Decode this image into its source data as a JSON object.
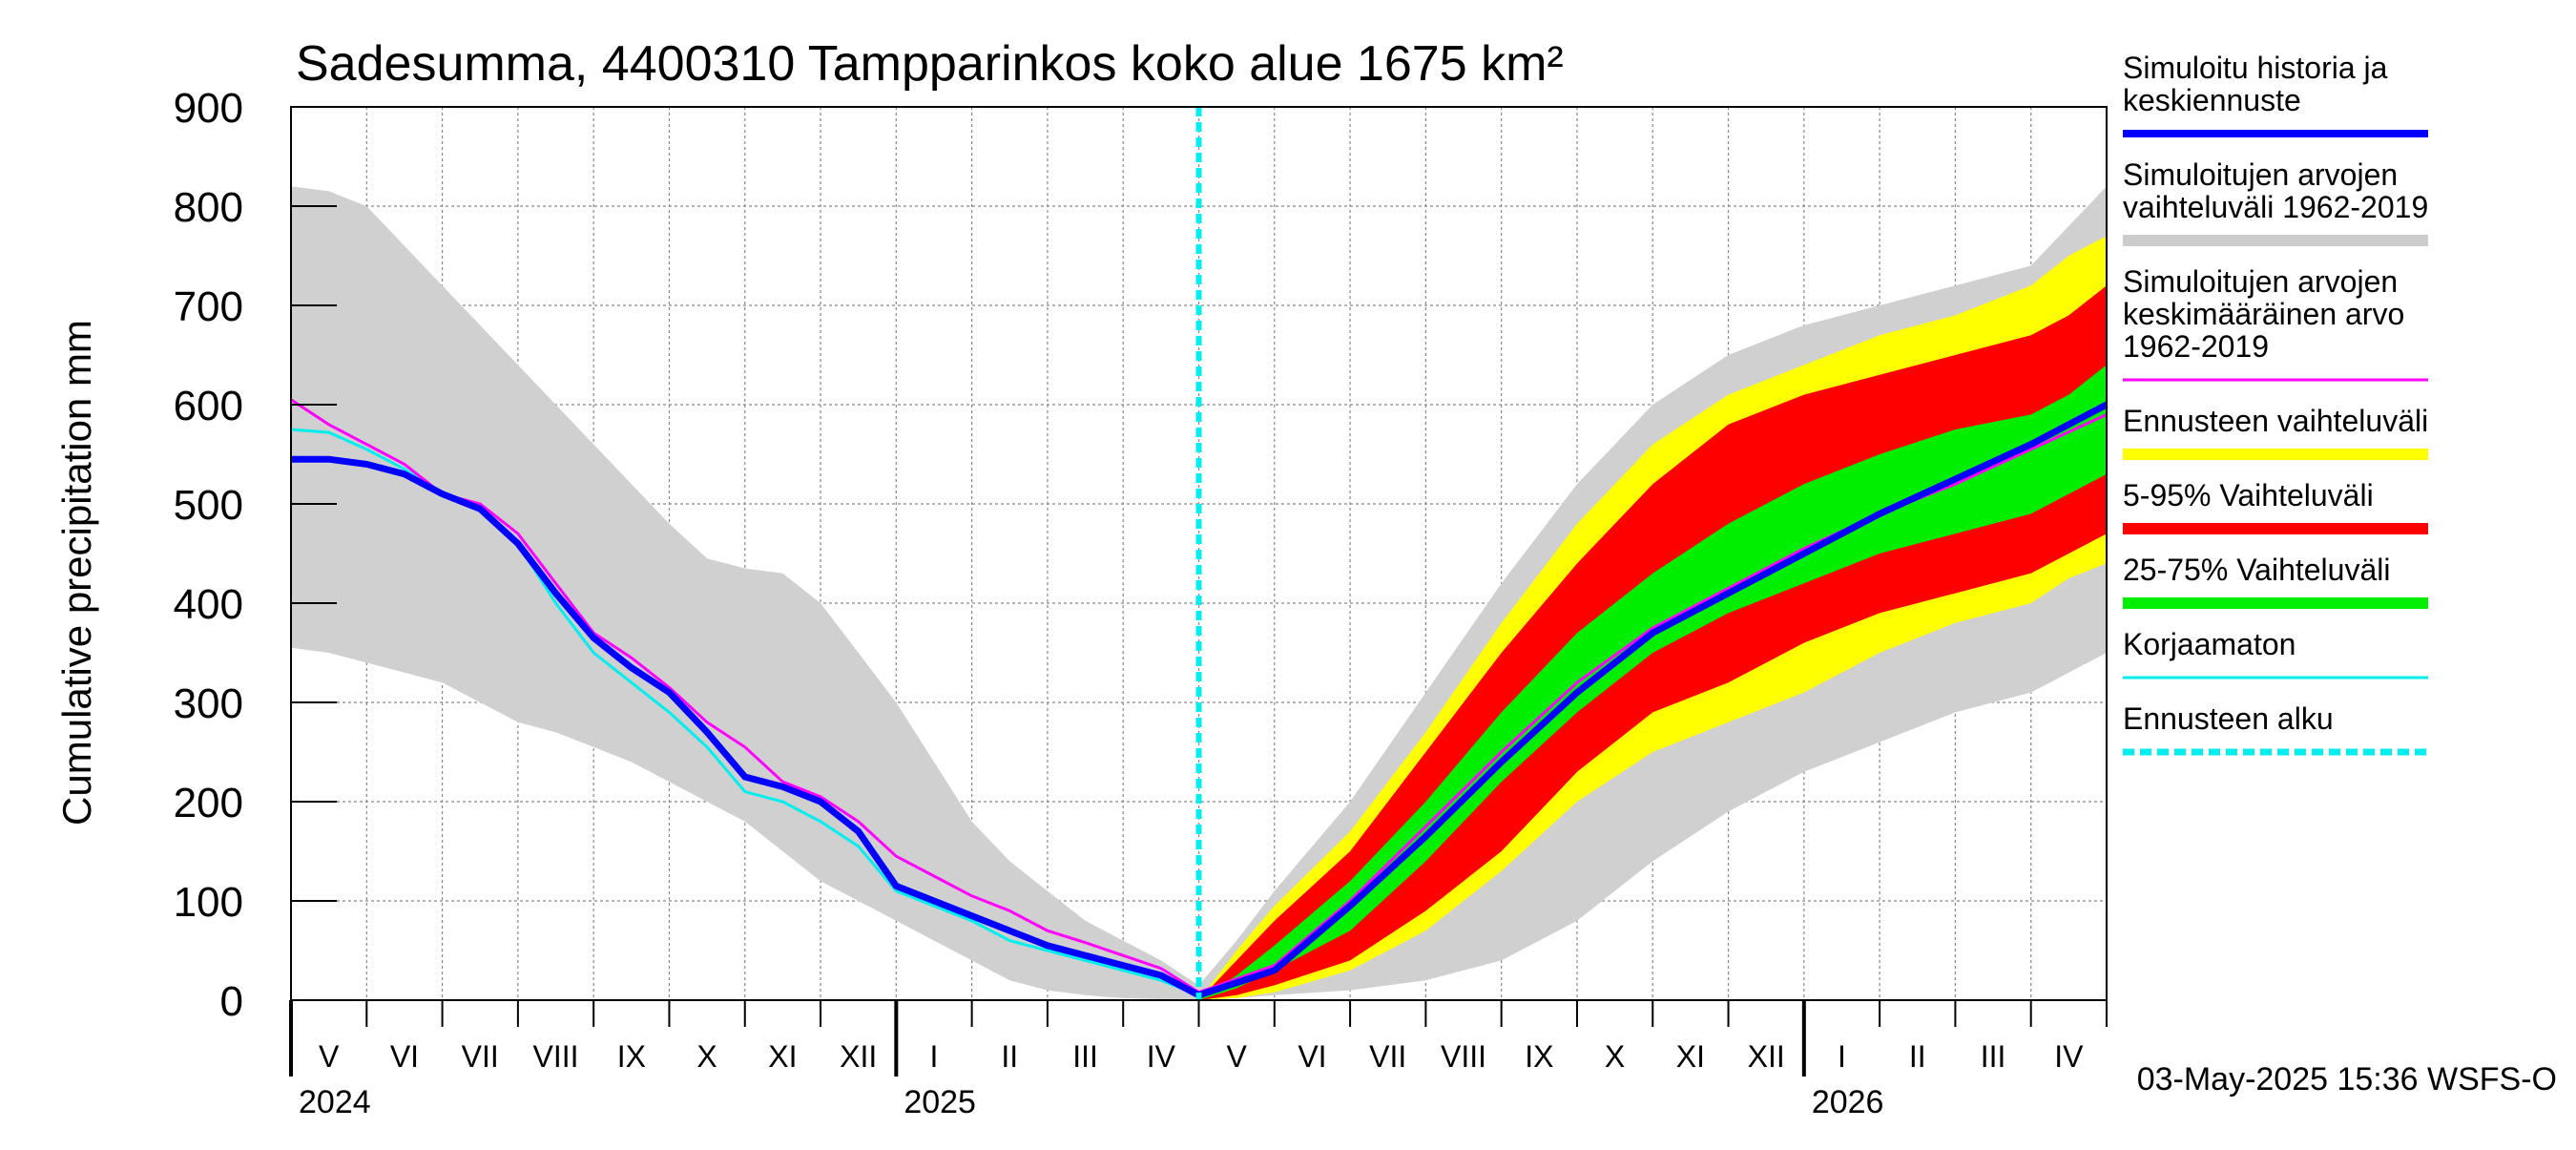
{
  "chart_data": {
    "type": "area",
    "title": "Sadesumma, 4400310 Tampparinkos koko alue 1675 km²",
    "ylabel": "Cumulative precipitation   mm",
    "ylim": [
      0,
      900
    ],
    "yticks": [
      0,
      100,
      200,
      300,
      400,
      500,
      600,
      700,
      800,
      900
    ],
    "xlim_months": [
      0,
      24
    ],
    "forecast_start_month": 12,
    "month_labels": [
      "V",
      "VI",
      "VII",
      "VIII",
      "IX",
      "X",
      "XI",
      "XII",
      "I",
      "II",
      "III",
      "IV",
      "V",
      "VI",
      "VII",
      "VIII",
      "IX",
      "X",
      "XI",
      "XII",
      "I",
      "II",
      "III",
      "IV"
    ],
    "year_labels": [
      {
        "label": "2024",
        "month": 0
      },
      {
        "label": "2025",
        "month": 8
      },
      {
        "label": "2026",
        "month": 20
      }
    ],
    "legend": [
      {
        "id": "hist",
        "label": [
          "Simuloitu historia ja",
          "keskiennuste"
        ],
        "color": "#0000ff",
        "style": "line"
      },
      {
        "id": "range",
        "label": [
          "Simuloitujen arvojen",
          "vaihteluväli 1962-2019"
        ],
        "color": "#cccccc",
        "style": "band"
      },
      {
        "id": "mean",
        "label": [
          "Simuloitujen arvojen",
          "keskimääräinen arvo",
          "   1962-2019"
        ],
        "color": "#ff00ff",
        "style": "thin"
      },
      {
        "id": "fc_range",
        "label": [
          "Ennusteen vaihteluväli"
        ],
        "color": "#ffff00",
        "style": "band"
      },
      {
        "id": "p5_95",
        "label": [
          "5-95% Vaihteluväli"
        ],
        "color": "#ff0000",
        "style": "band"
      },
      {
        "id": "p25_75",
        "label": [
          "25-75% Vaihteluväli"
        ],
        "color": "#00ee00",
        "style": "band"
      },
      {
        "id": "uncorr",
        "label": [
          "Korjaamaton"
        ],
        "color": "#00eeee",
        "style": "thin"
      },
      {
        "id": "fc_start",
        "label": [
          "Ennusteen alku"
        ],
        "color": "#00eeee",
        "style": "dashed"
      }
    ],
    "series": {
      "range_upper_hist": {
        "month": [
          0,
          0.5,
          1,
          1.5,
          2,
          2.5,
          3,
          3.5,
          4,
          4.5,
          5,
          5.5,
          6,
          6.5,
          7,
          7.5,
          8,
          8.5,
          9,
          9.5,
          10,
          10.5,
          11,
          11.5,
          12
        ],
        "values": [
          820,
          815,
          800,
          760,
          720,
          680,
          640,
          600,
          560,
          520,
          480,
          445,
          435,
          430,
          400,
          350,
          300,
          240,
          180,
          140,
          110,
          80,
          60,
          40,
          15
        ]
      },
      "range_lower_hist": {
        "month": [
          0,
          0.5,
          1,
          1.5,
          2,
          2.5,
          3,
          3.5,
          4,
          4.5,
          5,
          5.5,
          6,
          6.5,
          7,
          7.5,
          8,
          8.5,
          9,
          9.5,
          10,
          10.5,
          11,
          11.5,
          12
        ],
        "values": [
          355,
          350,
          340,
          330,
          320,
          300,
          280,
          270,
          255,
          240,
          220,
          200,
          180,
          150,
          120,
          100,
          80,
          60,
          40,
          20,
          10,
          5,
          2,
          1,
          0
        ]
      },
      "range_upper_fc": {
        "month": [
          12,
          12.5,
          13,
          14,
          15,
          16,
          17,
          18,
          19,
          20,
          21,
          22,
          23,
          23.5,
          24
        ],
        "values": [
          15,
          60,
          110,
          200,
          310,
          420,
          520,
          600,
          650,
          680,
          700,
          720,
          740,
          780,
          820
        ]
      },
      "range_lower_fc": {
        "month": [
          12,
          12.5,
          13,
          14,
          15,
          16,
          17,
          18,
          19,
          20,
          21,
          22,
          23,
          23.5,
          24
        ],
        "values": [
          0,
          2,
          5,
          10,
          20,
          40,
          80,
          140,
          190,
          230,
          260,
          290,
          310,
          330,
          350
        ]
      },
      "fc_upper": {
        "month": [
          12,
          12.5,
          13,
          14,
          15,
          16,
          17,
          18,
          19,
          20,
          21,
          22,
          23,
          23.5,
          24
        ],
        "values": [
          0,
          50,
          95,
          170,
          270,
          380,
          480,
          560,
          610,
          640,
          670,
          690,
          720,
          750,
          770
        ]
      },
      "fc_lower": {
        "month": [
          12,
          12.5,
          13,
          14,
          15,
          16,
          17,
          18,
          19,
          20,
          21,
          22,
          23,
          23.5,
          24
        ],
        "values": [
          0,
          2,
          8,
          30,
          70,
          130,
          200,
          250,
          280,
          310,
          350,
          380,
          400,
          425,
          440
        ]
      },
      "p95": {
        "month": [
          12,
          12.5,
          13,
          14,
          15,
          16,
          17,
          18,
          19,
          20,
          21,
          22,
          23,
          23.5,
          24
        ],
        "values": [
          0,
          40,
          80,
          150,
          250,
          350,
          440,
          520,
          580,
          610,
          630,
          650,
          670,
          690,
          720
        ]
      },
      "p5": {
        "month": [
          12,
          12.5,
          13,
          14,
          15,
          16,
          17,
          18,
          19,
          20,
          21,
          22,
          23,
          23.5,
          24
        ],
        "values": [
          0,
          5,
          15,
          40,
          90,
          150,
          230,
          290,
          320,
          360,
          390,
          410,
          430,
          450,
          470
        ]
      },
      "p75": {
        "month": [
          12,
          12.5,
          13,
          14,
          15,
          16,
          17,
          18,
          19,
          20,
          21,
          22,
          23,
          23.5,
          24
        ],
        "values": [
          0,
          25,
          55,
          120,
          200,
          290,
          370,
          430,
          480,
          520,
          550,
          575,
          590,
          610,
          640
        ]
      },
      "p25": {
        "month": [
          12,
          12.5,
          13,
          14,
          15,
          16,
          17,
          18,
          19,
          20,
          21,
          22,
          23,
          23.5,
          24
        ],
        "values": [
          0,
          12,
          30,
          70,
          140,
          220,
          290,
          350,
          390,
          420,
          450,
          470,
          490,
          510,
          530
        ]
      },
      "hist_mean": {
        "month": [
          0,
          0.5,
          1,
          1.5,
          2,
          2.5,
          3,
          3.5,
          4,
          4.5,
          5,
          5.5,
          6,
          6.5,
          7,
          7.5,
          8,
          8.5,
          9,
          9.5,
          10,
          10.5,
          11,
          11.5,
          12,
          13,
          14,
          15,
          16,
          17,
          18,
          19,
          20,
          21,
          22,
          23,
          24
        ],
        "values": [
          545,
          545,
          540,
          530,
          510,
          495,
          460,
          410,
          365,
          335,
          310,
          270,
          225,
          215,
          200,
          170,
          115,
          100,
          85,
          70,
          55,
          45,
          35,
          25,
          5,
          30,
          95,
          165,
          240,
          310,
          370,
          410,
          450,
          490,
          525,
          560,
          600
        ]
      },
      "mean": {
        "month": [
          0,
          0.5,
          1,
          1.5,
          2,
          2.5,
          3,
          3.5,
          4,
          4.5,
          5,
          5.5,
          6,
          6.5,
          7,
          7.5,
          8,
          8.5,
          9,
          9.5,
          10,
          10.5,
          11,
          11.5,
          12,
          13,
          14,
          15,
          16,
          17,
          18,
          19,
          20,
          21,
          22,
          23,
          24
        ],
        "values": [
          605,
          580,
          560,
          540,
          510,
          500,
          470,
          420,
          370,
          345,
          315,
          280,
          255,
          220,
          205,
          180,
          145,
          125,
          105,
          90,
          70,
          58,
          45,
          32,
          8,
          35,
          100,
          175,
          250,
          320,
          375,
          415,
          455,
          490,
          520,
          555,
          590
        ]
      },
      "uncorrected": {
        "month": [
          0,
          0.5,
          1,
          1.5,
          2,
          2.5,
          3,
          3.5,
          4,
          4.5,
          5,
          5.5,
          6,
          6.5,
          7,
          7.5,
          8,
          8.5,
          9,
          9.5,
          10,
          10.5,
          11,
          11.5,
          12
        ],
        "values": [
          575,
          572,
          555,
          535,
          510,
          495,
          460,
          400,
          350,
          320,
          290,
          255,
          210,
          200,
          180,
          155,
          110,
          95,
          80,
          60,
          50,
          40,
          30,
          20,
          5
        ]
      }
    }
  },
  "timestamp": "03-May-2025 15:36 WSFS-O"
}
